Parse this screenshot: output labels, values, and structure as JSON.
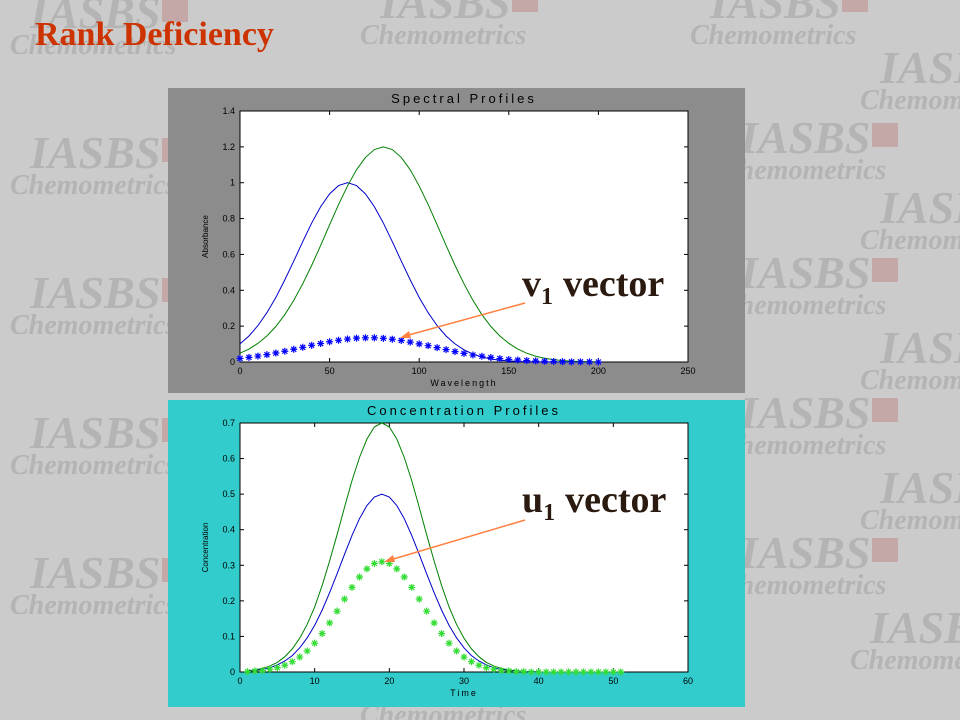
{
  "slide": {
    "title": "Rank Deficiency",
    "watermark": {
      "name": "IASBS",
      "subtitle": "Chemometrics"
    },
    "annotations": [
      {
        "symbol": "v",
        "subscript": "1",
        "text": "vector"
      },
      {
        "symbol": "u",
        "subscript": "1",
        "text": "vector"
      }
    ]
  },
  "chart_data": [
    {
      "type": "line",
      "title": "Spectral Profiles",
      "xlabel": "Wavelength",
      "ylabel": "Absorbance",
      "background": "#8c8c8c",
      "xlim": [
        0,
        250
      ],
      "xticks": [
        0,
        50,
        100,
        150,
        200,
        250
      ],
      "ylim": [
        0,
        1.4
      ],
      "yticks": [
        0,
        0.2,
        0.4,
        0.6,
        0.8,
        1,
        1.2,
        1.4
      ],
      "x": [
        0,
        5,
        10,
        15,
        20,
        25,
        30,
        35,
        40,
        45,
        50,
        55,
        60,
        65,
        70,
        75,
        80,
        85,
        90,
        95,
        100,
        105,
        110,
        115,
        120,
        125,
        130,
        135,
        140,
        145,
        150,
        155,
        160,
        165,
        170,
        175,
        180,
        185,
        190,
        195,
        200
      ],
      "series": [
        {
          "color": "#0000c8",
          "marker": "none",
          "values": [
            0.101,
            0.145,
            0.203,
            0.275,
            0.36,
            0.458,
            0.563,
            0.671,
            0.775,
            0.866,
            0.938,
            0.984,
            1.0,
            0.984,
            0.938,
            0.866,
            0.775,
            0.671,
            0.563,
            0.458,
            0.36,
            0.275,
            0.203,
            0.145,
            0.101,
            0.068,
            0.044,
            0.028,
            0.017,
            0.01,
            0.006,
            0.003,
            0.002,
            0.001,
            0,
            0,
            0,
            0,
            0,
            0,
            0
          ]
        },
        {
          "color": "#008000",
          "marker": "none",
          "values": [
            0.049,
            0.072,
            0.104,
            0.145,
            0.198,
            0.264,
            0.344,
            0.436,
            0.539,
            0.65,
            0.765,
            0.878,
            0.982,
            1.072,
            1.141,
            1.185,
            1.2,
            1.185,
            1.141,
            1.072,
            0.982,
            0.878,
            0.765,
            0.65,
            0.539,
            0.436,
            0.344,
            0.264,
            0.198,
            0.145,
            0.104,
            0.072,
            0.049,
            0.032,
            0.021,
            0.013,
            0.008,
            0.005,
            0.003,
            0.002,
            0.001
          ]
        },
        {
          "color": "#0000ff",
          "marker": "*",
          "values": [
            0.02,
            0.026,
            0.033,
            0.041,
            0.05,
            0.06,
            0.071,
            0.082,
            0.093,
            0.103,
            0.113,
            0.121,
            0.128,
            0.133,
            0.135,
            0.135,
            0.132,
            0.127,
            0.12,
            0.111,
            0.101,
            0.091,
            0.08,
            0.069,
            0.058,
            0.048,
            0.039,
            0.032,
            0.025,
            0.019,
            0.014,
            0.011,
            0.008,
            0.006,
            0.004,
            0.003,
            0.002,
            0.001,
            0.001,
            0.001,
            0
          ]
        }
      ]
    },
    {
      "type": "line",
      "title": "Concentration Profiles",
      "xlabel": "Time",
      "ylabel": "Concentration",
      "background": "#33cccc",
      "xlim": [
        0,
        60
      ],
      "xticks": [
        0,
        10,
        20,
        30,
        40,
        50,
        60
      ],
      "ylim": [
        0,
        0.7
      ],
      "yticks": [
        0,
        0.1,
        0.2,
        0.3,
        0.4,
        0.5,
        0.6,
        0.7
      ],
      "x": [
        1,
        2,
        3,
        4,
        5,
        6,
        7,
        8,
        9,
        10,
        11,
        12,
        13,
        14,
        15,
        16,
        17,
        18,
        19,
        20,
        21,
        22,
        23,
        24,
        25,
        26,
        27,
        28,
        29,
        30,
        31,
        32,
        33,
        34,
        35,
        36,
        37,
        38,
        39,
        40,
        41,
        42,
        43,
        44,
        45,
        46,
        47,
        48,
        49,
        50,
        51
      ],
      "series": [
        {
          "color": "#008000",
          "marker": "none",
          "values": [
            0.003,
            0.006,
            0.01,
            0.017,
            0.027,
            0.043,
            0.065,
            0.095,
            0.134,
            0.183,
            0.243,
            0.312,
            0.386,
            0.463,
            0.538,
            0.603,
            0.655,
            0.689,
            0.7,
            0.689,
            0.655,
            0.603,
            0.538,
            0.463,
            0.386,
            0.312,
            0.243,
            0.183,
            0.134,
            0.095,
            0.065,
            0.043,
            0.027,
            0.017,
            0.01,
            0.006,
            0.003,
            0.002,
            0.001,
            0.001,
            null,
            null,
            null,
            null,
            null,
            null,
            null,
            null,
            null,
            null,
            null
          ]
        },
        {
          "color": "#0000c8",
          "marker": "none",
          "values": [
            0.002,
            0.004,
            0.007,
            0.012,
            0.02,
            0.031,
            0.046,
            0.068,
            0.096,
            0.131,
            0.174,
            0.223,
            0.276,
            0.331,
            0.384,
            0.431,
            0.468,
            0.492,
            0.5,
            0.492,
            0.468,
            0.431,
            0.384,
            0.331,
            0.276,
            0.223,
            0.174,
            0.131,
            0.096,
            0.068,
            0.046,
            0.031,
            0.02,
            0.012,
            0.007,
            0.004,
            0.002,
            0.001,
            0.001,
            0,
            null,
            null,
            null,
            null,
            null,
            null,
            null,
            null,
            null,
            null,
            null
          ]
        },
        {
          "color": "#33dd33",
          "marker": "*",
          "values": [
            0.001,
            0.003,
            0.004,
            0.008,
            0.012,
            0.019,
            0.029,
            0.042,
            0.059,
            0.081,
            0.108,
            0.138,
            0.171,
            0.205,
            0.238,
            0.267,
            0.29,
            0.305,
            0.31,
            0.305,
            0.29,
            0.267,
            0.238,
            0.205,
            0.171,
            0.138,
            0.108,
            0.081,
            0.059,
            0.042,
            0.029,
            0.019,
            0.012,
            0.008,
            0.004,
            0.003,
            0.001,
            0.001,
            0,
            0,
            0,
            0,
            0,
            0,
            0,
            0,
            0,
            0,
            0,
            0,
            0
          ]
        }
      ]
    }
  ]
}
